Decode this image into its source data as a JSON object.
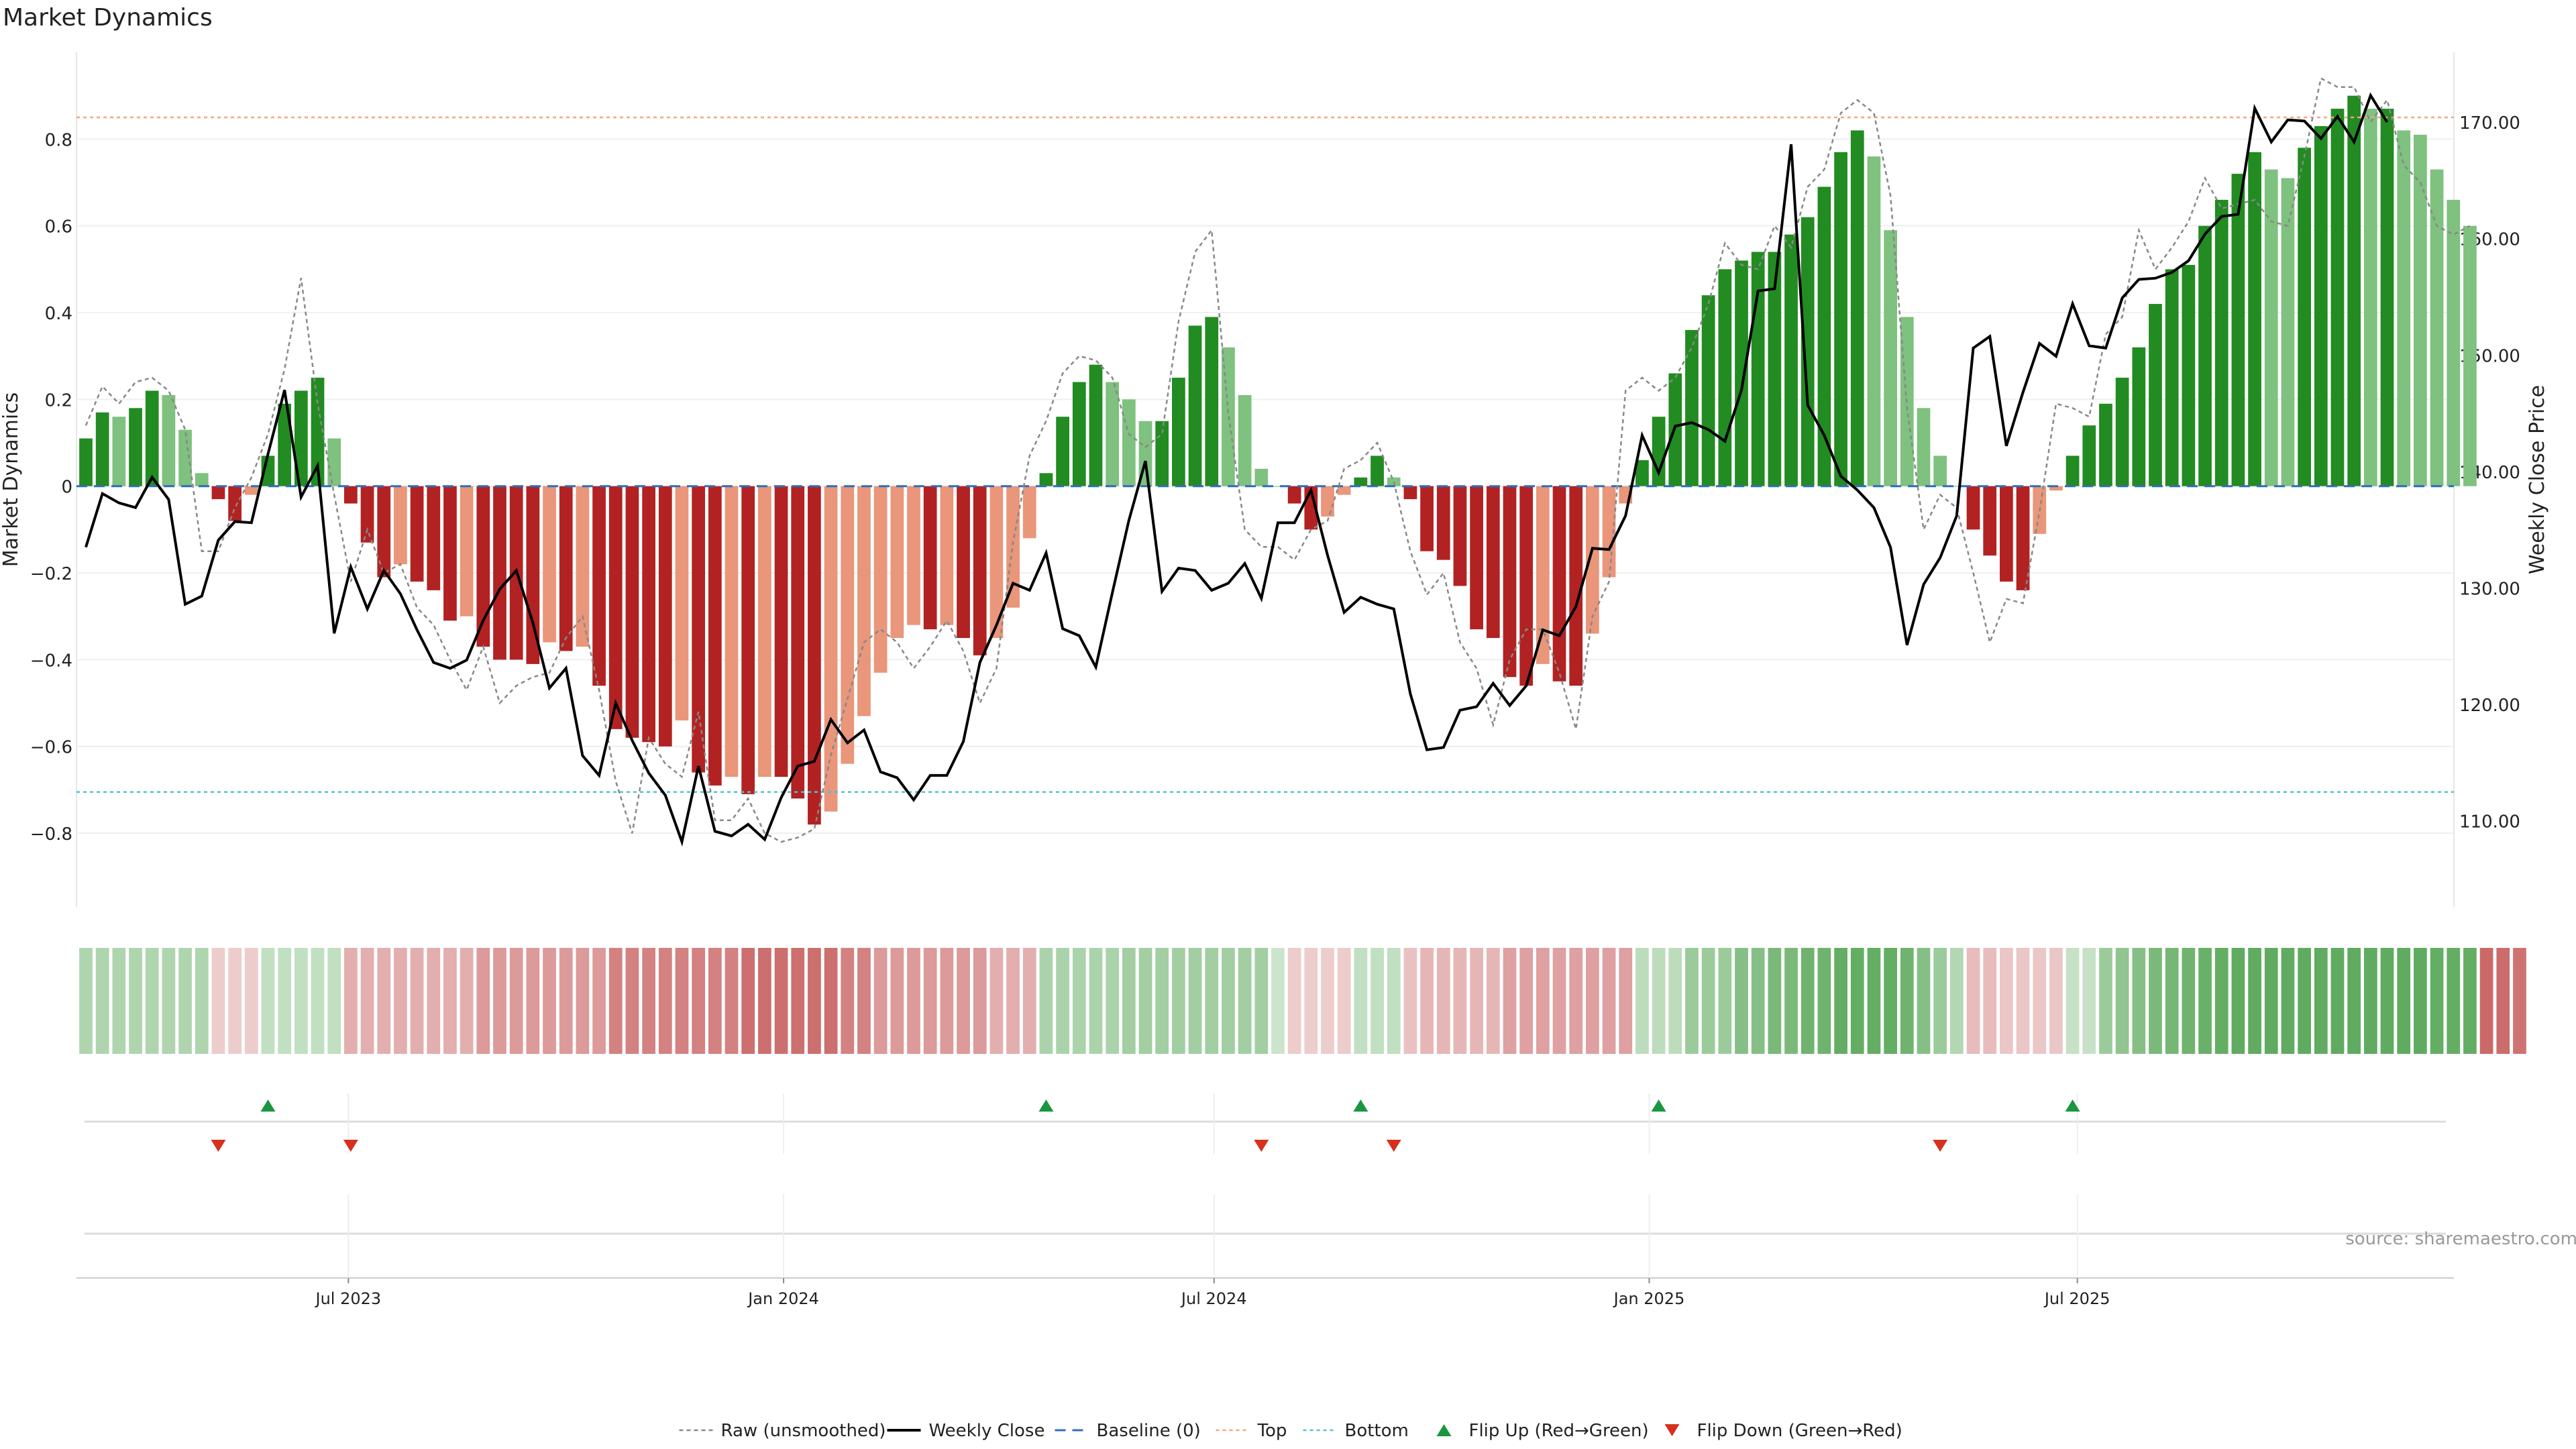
{
  "title": "Market Dynamics",
  "source": "source: sharemaestro.com",
  "colors": {
    "strong_up": "#228b22",
    "weak_up": "#7fc17f",
    "strong_down": "#b22222",
    "weak_down": "#e9967a",
    "top_line": "#f4a582",
    "bottom_line": "#4dc4d1",
    "baseline": "#2c6fbb",
    "flip_up": "#1a9641",
    "flip_down": "#d7301f",
    "close": "#000000",
    "raw": "#888888"
  },
  "chart_data": {
    "type": "bar",
    "x_start": "2023-03-12",
    "x_step_days": 7,
    "xlabel": "",
    "ylabel": "Market Dynamics",
    "y2label": "Weekly Close Price",
    "ylim": [
      -0.97,
      1.0
    ],
    "y2lim": [
      102.6,
      176.0
    ],
    "yticks": [
      -0.8,
      -0.6,
      -0.4,
      -0.2,
      0,
      0.2,
      0.4,
      0.6,
      0.8
    ],
    "y2ticks": [
      "110.00",
      "120.00",
      "130.00",
      "140.00",
      "150.00",
      "160.00",
      "170.00"
    ],
    "xticks": [
      {
        "date": "2023-07-01",
        "label": "Jul 2023"
      },
      {
        "date": "2024-01-01",
        "label": "Jan 2024"
      },
      {
        "date": "2024-07-01",
        "label": "Jul 2024"
      },
      {
        "date": "2025-01-01",
        "label": "Jan 2025"
      },
      {
        "date": "2025-07-01",
        "label": "Jul 2025"
      }
    ],
    "top_line": 0.85,
    "bottom_line": -0.705,
    "legend": {
      "raw": "Raw (unsmoothed)",
      "close": "Weekly Close",
      "baseline": "Baseline (0)",
      "top": "Top",
      "bottom": "Bottom",
      "flip_up": "Flip Up (Red→Green)",
      "flip_down": "Flip Down (Green→Red)"
    },
    "legend_position": "bottom-center",
    "series": [
      {
        "name": "Market Dynamics",
        "values": [
          0.11,
          0.17,
          0.16,
          0.18,
          0.22,
          0.21,
          0.13,
          0.03,
          -0.03,
          -0.08,
          -0.02,
          0.07,
          0.19,
          0.22,
          0.25,
          0.11,
          -0.04,
          -0.13,
          -0.21,
          -0.18,
          -0.22,
          -0.24,
          -0.31,
          -0.3,
          -0.37,
          -0.4,
          -0.4,
          -0.41,
          -0.36,
          -0.38,
          -0.37,
          -0.46,
          -0.56,
          -0.58,
          -0.59,
          -0.6,
          -0.54,
          -0.66,
          -0.69,
          -0.67,
          -0.71,
          -0.67,
          -0.67,
          -0.72,
          -0.78,
          -0.75,
          -0.64,
          -0.53,
          -0.43,
          -0.35,
          -0.32,
          -0.33,
          -0.32,
          -0.35,
          -0.39,
          -0.35,
          -0.28,
          -0.12,
          0.03,
          0.16,
          0.24,
          0.28,
          0.24,
          0.2,
          0.15,
          0.15,
          0.25,
          0.37,
          0.39,
          0.32,
          0.21,
          0.04,
          0.0,
          -0.04,
          -0.1,
          -0.07,
          -0.02,
          0.02,
          0.07,
          0.02,
          -0.03,
          -0.15,
          -0.17,
          -0.23,
          -0.33,
          -0.35,
          -0.44,
          -0.46,
          -0.41,
          -0.45,
          -0.46,
          -0.34,
          -0.21,
          -0.04,
          0.06,
          0.16,
          0.26,
          0.36,
          0.44,
          0.5,
          0.52,
          0.54,
          0.54,
          0.58,
          0.62,
          0.69,
          0.77,
          0.82,
          0.76,
          0.59,
          0.39,
          0.18,
          0.07,
          0.0,
          -0.1,
          -0.16,
          -0.22,
          -0.24,
          -0.11,
          -0.01,
          0.07,
          0.14,
          0.19,
          0.25,
          0.32,
          0.42,
          0.5,
          0.51,
          0.6,
          0.66,
          0.72,
          0.77,
          0.73,
          0.71,
          0.78,
          0.83,
          0.87,
          0.9,
          0.87,
          0.87,
          0.82,
          0.81,
          0.73,
          0.66,
          0.6
        ]
      },
      {
        "name": "Raw (unsmoothed)",
        "values": [
          0.14,
          0.23,
          0.19,
          0.24,
          0.25,
          0.22,
          0.13,
          -0.15,
          -0.15,
          -0.05,
          0.02,
          0.12,
          0.27,
          0.48,
          0.19,
          -0.02,
          -0.22,
          -0.1,
          -0.2,
          -0.18,
          -0.28,
          -0.32,
          -0.4,
          -0.47,
          -0.37,
          -0.5,
          -0.46,
          -0.44,
          -0.43,
          -0.35,
          -0.3,
          -0.47,
          -0.68,
          -0.8,
          -0.58,
          -0.64,
          -0.67,
          -0.52,
          -0.77,
          -0.77,
          -0.72,
          -0.8,
          -0.82,
          -0.81,
          -0.79,
          -0.62,
          -0.49,
          -0.36,
          -0.33,
          -0.36,
          -0.42,
          -0.37,
          -0.31,
          -0.38,
          -0.5,
          -0.42,
          -0.13,
          0.07,
          0.15,
          0.26,
          0.3,
          0.29,
          0.25,
          0.12,
          0.09,
          0.12,
          0.38,
          0.54,
          0.59,
          0.17,
          -0.1,
          -0.14,
          -0.14,
          -0.17,
          -0.1,
          -0.08,
          0.04,
          0.06,
          0.1,
          0.01,
          -0.15,
          -0.25,
          -0.2,
          -0.36,
          -0.42,
          -0.55,
          -0.4,
          -0.33,
          -0.33,
          -0.43,
          -0.56,
          -0.3,
          -0.22,
          0.22,
          0.25,
          0.22,
          0.25,
          0.32,
          0.42,
          0.56,
          0.51,
          0.5,
          0.6,
          0.55,
          0.69,
          0.73,
          0.86,
          0.89,
          0.86,
          0.67,
          0.18,
          -0.1,
          -0.02,
          -0.05,
          -0.2,
          -0.36,
          -0.26,
          -0.27,
          -0.06,
          0.19,
          0.18,
          0.16,
          0.35,
          0.39,
          0.59,
          0.5,
          0.55,
          0.61,
          0.71,
          0.64,
          0.65,
          0.66,
          0.61,
          0.6,
          0.76,
          0.94,
          0.92,
          0.92,
          0.84,
          0.89,
          0.74,
          0.7,
          0.6,
          0.58,
          0.6
        ]
      },
      {
        "name": "Weekly Close",
        "values": [
          133.5,
          138.1,
          137.3,
          136.9,
          139.5,
          137.6,
          128.6,
          129.3,
          134.1,
          135.7,
          135.6,
          141.5,
          147.0,
          137.8,
          140.5,
          126.1,
          131.8,
          128.2,
          131.5,
          129.5,
          126.4,
          123.6,
          123.1,
          123.8,
          127.2,
          129.9,
          131.5,
          127.0,
          121.4,
          123.1,
          115.6,
          113.9,
          120.1,
          116.9,
          114.1,
          112.2,
          108.2,
          114.7,
          109.1,
          108.7,
          109.7,
          108.4,
          112.0,
          114.7,
          115.1,
          118.7,
          116.7,
          117.8,
          114.2,
          113.7,
          111.8,
          113.9,
          113.9,
          116.8,
          123.6,
          126.8,
          130.4,
          129.8,
          133.0,
          126.5,
          125.9,
          123.2,
          129.6,
          135.8,
          140.9,
          129.7,
          131.7,
          131.5,
          129.8,
          130.4,
          132.1,
          129.1,
          135.6,
          135.6,
          138.4,
          132.8,
          127.9,
          129.2,
          128.6,
          128.2,
          120.9,
          116.1,
          116.3,
          119.5,
          119.8,
          121.8,
          119.9,
          121.6,
          126.4,
          125.9,
          128.4,
          133.4,
          133.3,
          136.2,
          143.1,
          139.9,
          143.9,
          144.2,
          143.6,
          142.6,
          147.0,
          155.5,
          155.7,
          168.1,
          145.7,
          143.1,
          139.6,
          138.4,
          136.9,
          133.5,
          125.1,
          130.3,
          132.6,
          136.2,
          150.6,
          151.6,
          142.2,
          146.8,
          151.0,
          149.9,
          154.4,
          150.8,
          150.6,
          154.9,
          156.5,
          156.6,
          157.1,
          158.1,
          160.4,
          161.9,
          162.1,
          171.2,
          168.3,
          170.2,
          170.1,
          168.6,
          170.5,
          168.3,
          172.3,
          170.0
        ]
      }
    ],
    "color_strip_intensity": [
      0.36,
      0.36,
      0.36,
      0.36,
      0.36,
      0.36,
      0.36,
      0.36,
      0.23,
      0.23,
      0.23,
      0.28,
      0.28,
      0.28,
      0.28,
      0.28,
      0.37,
      0.37,
      0.37,
      0.37,
      0.37,
      0.37,
      0.37,
      0.37,
      0.46,
      0.46,
      0.46,
      0.46,
      0.46,
      0.46,
      0.46,
      0.46,
      0.57,
      0.57,
      0.57,
      0.57,
      0.57,
      0.57,
      0.57,
      0.57,
      0.65,
      0.65,
      0.65,
      0.65,
      0.65,
      0.65,
      0.57,
      0.57,
      0.46,
      0.46,
      0.46,
      0.46,
      0.46,
      0.46,
      0.46,
      0.37,
      0.37,
      0.37,
      0.38,
      0.38,
      0.38,
      0.38,
      0.38,
      0.42,
      0.42,
      0.42,
      0.42,
      0.42,
      0.42,
      0.42,
      0.42,
      0.42,
      0.23,
      0.23,
      0.23,
      0.23,
      0.23,
      0.28,
      0.28,
      0.28,
      0.28,
      0.33,
      0.33,
      0.33,
      0.33,
      0.33,
      0.43,
      0.43,
      0.43,
      0.43,
      0.43,
      0.43,
      0.43,
      0.43,
      0.3,
      0.3,
      0.3,
      0.45,
      0.45,
      0.45,
      0.55,
      0.55,
      0.6,
      0.6,
      0.65,
      0.65,
      0.7,
      0.7,
      0.7,
      0.7,
      0.65,
      0.55,
      0.45,
      0.35,
      0.3,
      0.3,
      0.26,
      0.26,
      0.26,
      0.26,
      0.26,
      0.26,
      0.45,
      0.5,
      0.55,
      0.6,
      0.62,
      0.65,
      0.68,
      0.7,
      0.72,
      0.72,
      0.72,
      0.72,
      0.72,
      0.72,
      0.72,
      0.72,
      0.72,
      0.72,
      0.72,
      0.72,
      0.7,
      0.7,
      0.7,
      0.68,
      0.66,
      0.64
    ],
    "flip_up_index": [
      11,
      58,
      77,
      95,
      120
    ],
    "flip_down_index": [
      8,
      16,
      71,
      79,
      112
    ]
  }
}
